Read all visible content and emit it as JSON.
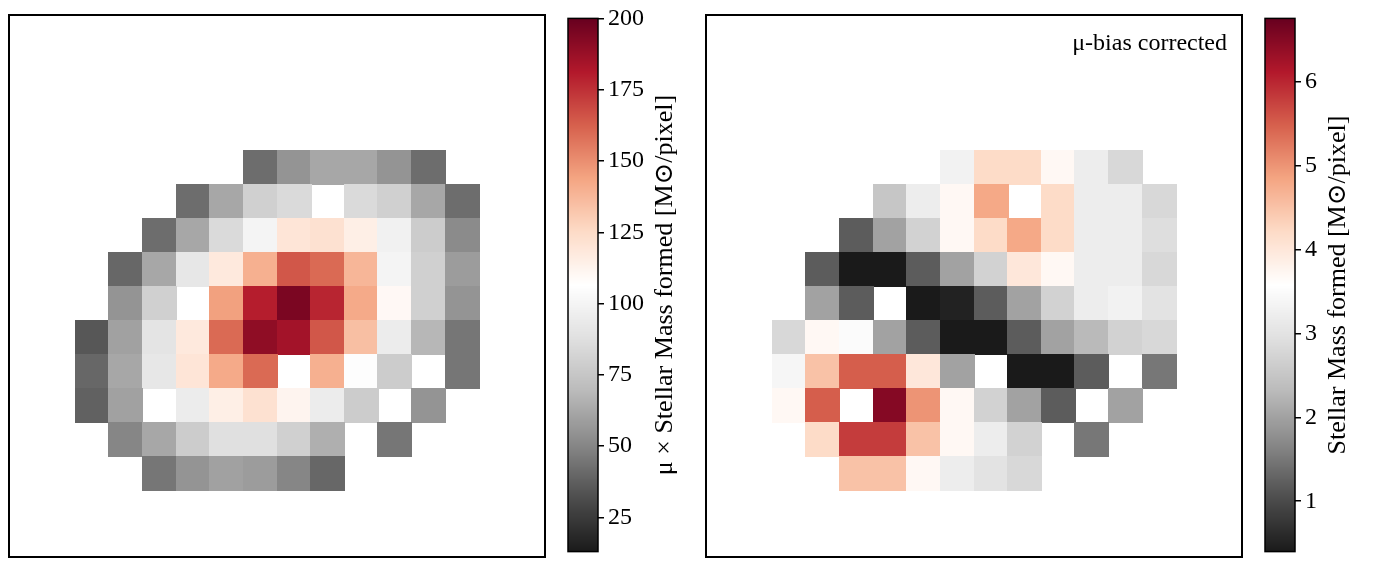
{
  "chart_data": [
    {
      "type": "heatmap",
      "xlim": [
        0,
        16
      ],
      "ylim": [
        0,
        16
      ],
      "tick_labels": false,
      "color": "RdGy_r",
      "cells": [
        [
          null,
          null,
          null,
          null,
          null,
          null,
          null,
          null,
          null,
          null,
          null,
          null,
          null,
          null,
          null,
          null
        ],
        [
          null,
          null,
          null,
          null,
          null,
          null,
          null,
          null,
          null,
          null,
          null,
          null,
          null,
          null,
          null,
          null
        ],
        [
          null,
          null,
          null,
          null,
          null,
          null,
          null,
          null,
          null,
          null,
          null,
          null,
          null,
          null,
          null,
          null
        ],
        [
          null,
          null,
          null,
          null,
          null,
          null,
          null,
          null,
          null,
          null,
          null,
          null,
          null,
          null,
          null,
          null
        ],
        [
          null,
          null,
          null,
          null,
          null,
          null,
          null,
          42,
          55,
          62,
          62,
          55,
          42,
          null,
          null,
          null
        ],
        [
          null,
          null,
          null,
          null,
          null,
          42,
          62,
          80,
          85,
          null,
          85,
          80,
          62,
          42,
          null,
          null
        ],
        [
          null,
          null,
          null,
          null,
          42,
          62,
          85,
          100,
          120,
          122,
          115,
          98,
          78,
          52,
          null,
          null
        ],
        [
          null,
          null,
          null,
          40,
          62,
          92,
          118,
          140,
          165,
          160,
          138,
          100,
          80,
          58,
          null,
          null
        ],
        [
          null,
          null,
          null,
          55,
          80,
          null,
          145,
          180,
          195,
          178,
          142,
          110,
          80,
          55,
          null,
          null
        ],
        [
          null,
          null,
          35,
          60,
          90,
          118,
          160,
          190,
          185,
          165,
          135,
          95,
          68,
          45,
          null,
          null
        ],
        [
          null,
          null,
          40,
          62,
          92,
          120,
          142,
          160,
          null,
          140,
          105,
          78,
          null,
          45,
          null,
          null
        ],
        [
          null,
          null,
          38,
          60,
          null,
          95,
          115,
          122,
          112,
          95,
          78,
          null,
          55,
          null,
          null,
          null
        ],
        [
          null,
          null,
          null,
          50,
          62,
          78,
          88,
          88,
          80,
          65,
          null,
          45,
          null,
          null,
          null,
          null
        ],
        [
          null,
          null,
          null,
          null,
          45,
          55,
          60,
          58,
          50,
          40,
          null,
          null,
          null,
          null,
          null,
          null
        ],
        [
          null,
          null,
          null,
          null,
          null,
          null,
          null,
          null,
          null,
          null,
          null,
          null,
          null,
          null,
          null,
          null
        ],
        [
          null,
          null,
          null,
          null,
          null,
          null,
          null,
          null,
          null,
          null,
          null,
          null,
          null,
          null,
          null,
          null
        ]
      ],
      "color_range": [
        13,
        200
      ],
      "color_ticks": [
        25,
        50,
        75,
        100,
        125,
        150,
        175,
        200
      ],
      "colorbar_label": "μ × Stellar Mass formed [M⊙/pixel]"
    },
    {
      "type": "heatmap",
      "xlim": [
        0,
        16
      ],
      "ylim": [
        0,
        16
      ],
      "tick_labels": false,
      "color": "RdGy_r",
      "annotations": [
        "μ-bias corrected"
      ],
      "cells": [
        [
          null,
          null,
          null,
          null,
          null,
          null,
          null,
          null,
          null,
          null,
          null,
          null,
          null,
          null,
          null,
          null
        ],
        [
          null,
          null,
          null,
          null,
          null,
          null,
          null,
          null,
          null,
          null,
          null,
          null,
          null,
          null,
          null,
          null
        ],
        [
          null,
          null,
          null,
          null,
          null,
          null,
          null,
          null,
          null,
          null,
          null,
          null,
          null,
          null,
          null,
          null
        ],
        [
          null,
          null,
          null,
          null,
          null,
          null,
          null,
          null,
          null,
          null,
          null,
          null,
          null,
          null,
          null,
          null
        ],
        [
          null,
          null,
          null,
          null,
          null,
          null,
          null,
          3.3,
          4.2,
          4.2,
          3.7,
          3.2,
          2.8,
          null,
          null,
          null
        ],
        [
          null,
          null,
          null,
          null,
          null,
          2.5,
          3.2,
          3.7,
          4.8,
          null,
          4.2,
          3.2,
          3.2,
          2.8,
          null,
          null
        ],
        [
          null,
          null,
          null,
          null,
          1.2,
          2.0,
          2.7,
          3.7,
          4.2,
          4.8,
          4.2,
          3.2,
          3.2,
          2.9,
          null,
          null
        ],
        [
          null,
          null,
          null,
          1.2,
          0.4,
          0.4,
          1.2,
          2.0,
          2.7,
          4.0,
          3.7,
          3.2,
          3.2,
          2.8,
          null,
          null
        ],
        [
          null,
          null,
          null,
          2.0,
          1.2,
          null,
          0.3,
          0.5,
          1.2,
          2.0,
          2.7,
          3.2,
          3.3,
          3.0,
          null,
          null
        ],
        [
          null,
          null,
          2.8,
          3.7,
          3.5,
          2.0,
          1.2,
          0.4,
          0.3,
          1.2,
          2.0,
          2.3,
          2.7,
          2.8,
          null,
          null
        ],
        [
          null,
          null,
          3.4,
          4.5,
          5.5,
          5.5,
          4.0,
          2.0,
          null,
          0.4,
          0.4,
          1.2,
          null,
          1.5,
          null,
          null
        ],
        [
          null,
          null,
          3.7,
          5.5,
          null,
          6.5,
          5.0,
          3.7,
          2.7,
          2.0,
          1.2,
          null,
          2.0,
          null,
          null,
          null
        ],
        [
          null,
          null,
          null,
          4.2,
          5.8,
          5.8,
          4.5,
          3.7,
          3.2,
          2.7,
          null,
          1.5,
          null,
          null,
          null,
          null
        ],
        [
          null,
          null,
          null,
          null,
          4.5,
          4.5,
          3.7,
          3.2,
          3.0,
          2.8,
          null,
          null,
          null,
          null,
          null,
          null
        ],
        [
          null,
          null,
          null,
          null,
          null,
          null,
          null,
          null,
          null,
          null,
          null,
          null,
          null,
          null,
          null,
          null
        ],
        [
          null,
          null,
          null,
          null,
          null,
          null,
          null,
          null,
          null,
          null,
          null,
          null,
          null,
          null,
          null,
          null
        ]
      ],
      "color_range": [
        0.4,
        6.75
      ],
      "color_ticks": [
        1,
        2,
        3,
        4,
        5,
        6
      ],
      "colorbar_label": "Stellar Mass formed [M⊙/pixel]"
    }
  ]
}
